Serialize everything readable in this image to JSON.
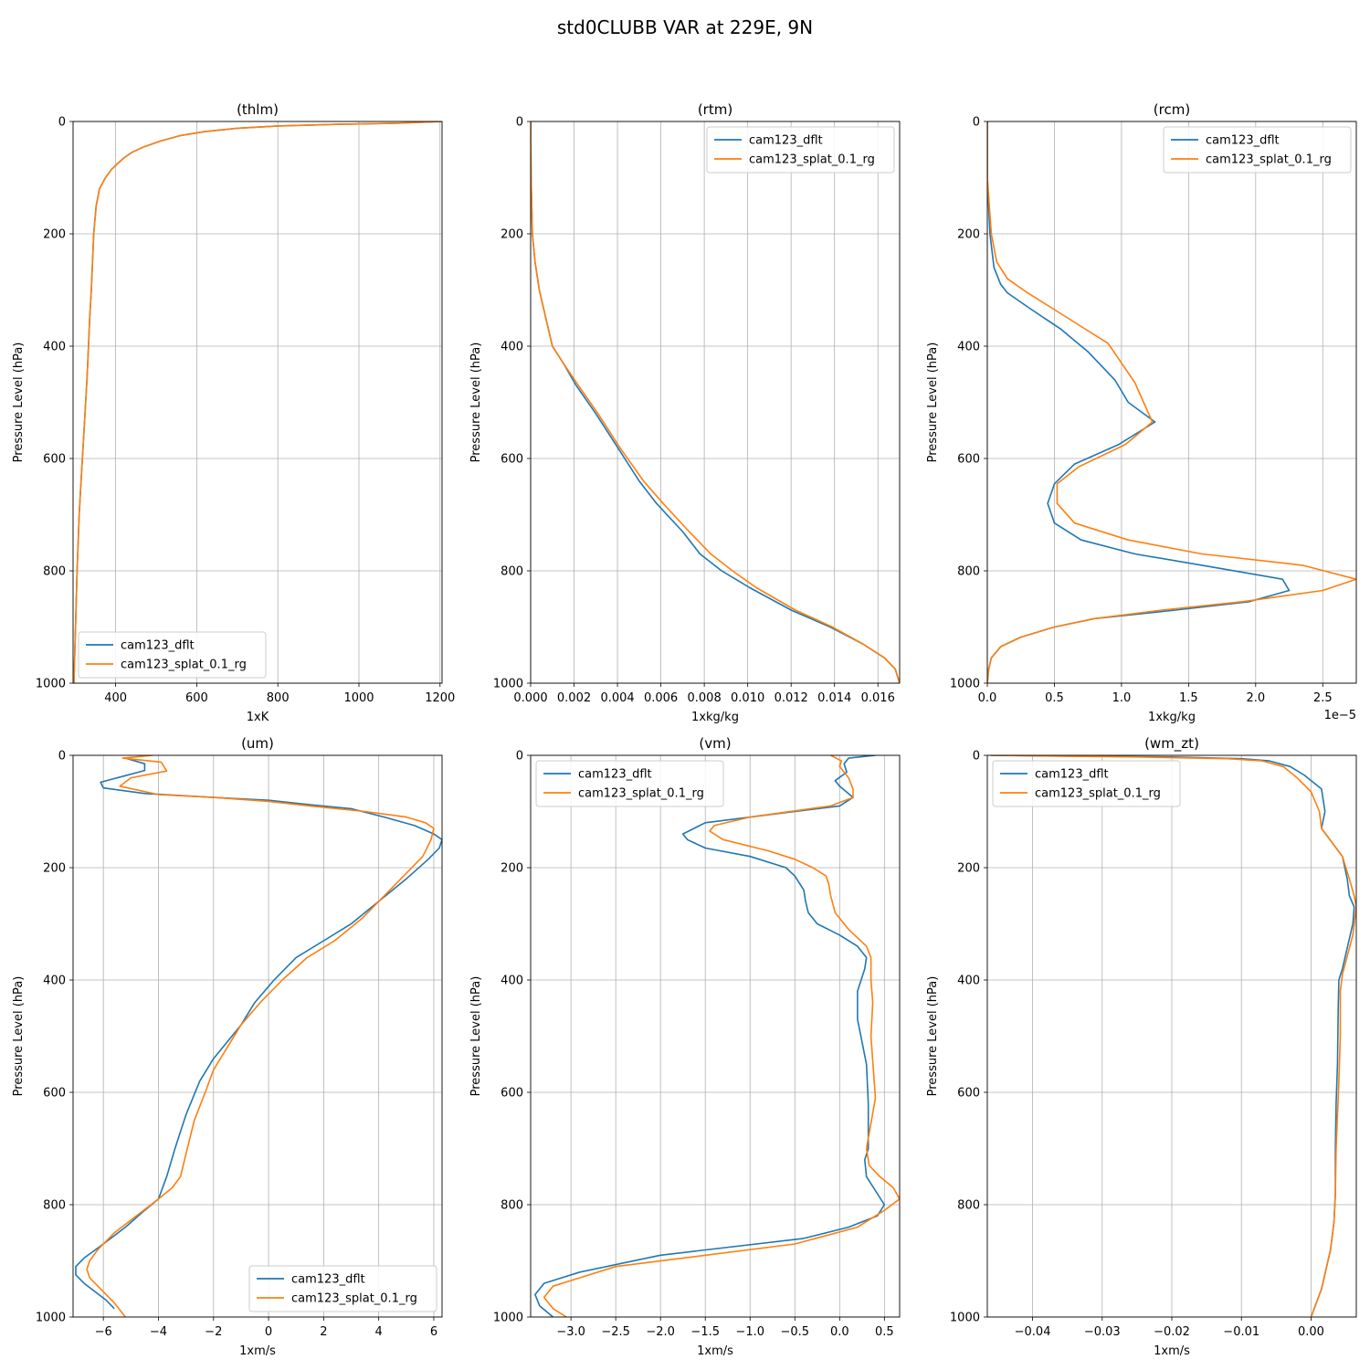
{
  "suptitle": "std0CLUBB VAR at 229E, 9N",
  "colors": {
    "cam123_dflt": "#1f77b4",
    "cam123_splat_0.1_rg": "#ff7f0e",
    "grid": "#b0b0b0"
  },
  "chart_data": [
    {
      "type": "line",
      "title": "(thlm)",
      "xlabel": "1xK",
      "ylabel": "Pressure Level (hPa)",
      "xlim": [
        295,
        1205
      ],
      "ylim": [
        1000,
        0
      ],
      "xticks": [
        400,
        600,
        800,
        1000,
        1200
      ],
      "xtick_labels": [
        "400",
        "600",
        "800",
        "1000",
        "1200"
      ],
      "yticks": [
        0,
        200,
        400,
        600,
        800,
        1000
      ],
      "ytick_labels": [
        "0",
        "200",
        "400",
        "600",
        "800",
        "1000"
      ],
      "offset_label": "",
      "grid": true,
      "legend": "lower left",
      "series": [
        {
          "name": "cam123_dflt",
          "color": "#1f77b4",
          "x": [
            1205,
            1100,
            950,
            800,
            700,
            620,
            560,
            510,
            470,
            440,
            420,
            405,
            390,
            375,
            360,
            352,
            346,
            343,
            340,
            336,
            333,
            330,
            326,
            322,
            318,
            314,
            310,
            305,
            301,
            297
          ],
          "y": [
            0,
            3,
            5,
            8,
            12,
            18,
            25,
            35,
            45,
            55,
            65,
            75,
            85,
            100,
            120,
            150,
            200,
            250,
            300,
            350,
            400,
            450,
            500,
            550,
            600,
            650,
            700,
            800,
            900,
            1000
          ]
        },
        {
          "name": "cam123_splat_0.1_rg",
          "color": "#ff7f0e",
          "x": [
            1205,
            1100,
            950,
            800,
            700,
            620,
            560,
            510,
            470,
            440,
            420,
            405,
            390,
            375,
            360,
            352,
            346,
            343,
            340,
            336,
            333,
            330,
            326,
            322,
            318,
            314,
            310,
            305,
            301,
            297
          ],
          "y": [
            0,
            3,
            5,
            8,
            12,
            18,
            25,
            35,
            45,
            55,
            65,
            75,
            85,
            100,
            120,
            150,
            200,
            250,
            300,
            350,
            400,
            450,
            500,
            550,
            600,
            650,
            700,
            800,
            900,
            1000
          ]
        }
      ]
    },
    {
      "type": "line",
      "title": "(rtm)",
      "xlabel": "1xkg/kg",
      "ylabel": "Pressure Level (hPa)",
      "xlim": [
        0.0,
        0.017
      ],
      "ylim": [
        1000,
        0
      ],
      "xticks": [
        0.0,
        0.002,
        0.004,
        0.006,
        0.008,
        0.01,
        0.012,
        0.014,
        0.016
      ],
      "xtick_labels": [
        "0.000",
        "0.002",
        "0.004",
        "0.006",
        "0.008",
        "0.010",
        "0.012",
        "0.014",
        "0.016"
      ],
      "yticks": [
        0,
        200,
        400,
        600,
        800,
        1000
      ],
      "ytick_labels": [
        "0",
        "200",
        "400",
        "600",
        "800",
        "1000"
      ],
      "offset_label": "",
      "grid": true,
      "legend": "upper right",
      "series": [
        {
          "name": "cam123_dflt",
          "color": "#1f77b4",
          "x": [
            0.0,
            2e-05,
            8e-05,
            0.0002,
            0.0004,
            0.0007,
            0.001,
            0.0015,
            0.0021,
            0.003,
            0.004,
            0.005,
            0.0058,
            0.007,
            0.0078,
            0.0088,
            0.0101,
            0.012,
            0.0138,
            0.0153,
            0.0163,
            0.0168,
            0.017
          ],
          "y": [
            0,
            100,
            200,
            250,
            300,
            350,
            400,
            430,
            470,
            520,
            580,
            640,
            680,
            730,
            770,
            800,
            830,
            870,
            900,
            930,
            955,
            975,
            1000
          ]
        },
        {
          "name": "cam123_splat_0.1_rg",
          "color": "#ff7f0e",
          "x": [
            0.0,
            2e-05,
            8e-05,
            0.0002,
            0.0004,
            0.0007,
            0.001,
            0.0015,
            0.0022,
            0.0031,
            0.0041,
            0.0052,
            0.0061,
            0.0073,
            0.0083,
            0.0093,
            0.0104,
            0.0122,
            0.0139,
            0.0153,
            0.0163,
            0.0168,
            0.017
          ],
          "y": [
            0,
            100,
            200,
            250,
            300,
            350,
            400,
            430,
            470,
            520,
            580,
            640,
            680,
            730,
            770,
            800,
            830,
            870,
            900,
            930,
            955,
            975,
            1000
          ]
        }
      ]
    },
    {
      "type": "line",
      "title": "(rcm)",
      "xlabel": "1xkg/kg",
      "ylabel": "Pressure Level (hPa)",
      "xlim": [
        0.0,
        2.75
      ],
      "ylim": [
        1000,
        0
      ],
      "xticks": [
        0.0,
        0.5,
        1.0,
        1.5,
        2.0,
        2.5
      ],
      "xtick_labels": [
        "0.0",
        "0.5",
        "1.0",
        "1.5",
        "2.0",
        "2.5"
      ],
      "yticks": [
        0,
        200,
        400,
        600,
        800,
        1000
      ],
      "ytick_labels": [
        "0",
        "200",
        "400",
        "600",
        "800",
        "1000"
      ],
      "offset_label": "1e−5",
      "grid": true,
      "legend": "upper right",
      "series": [
        {
          "name": "cam123_dflt",
          "color": "#1f77b4",
          "x": [
            0.0,
            0.0,
            0.02,
            0.05,
            0.1,
            0.15,
            0.3,
            0.55,
            0.75,
            0.95,
            1.05,
            1.25,
            0.98,
            0.65,
            0.5,
            0.45,
            0.5,
            0.7,
            1.1,
            1.6,
            2.2,
            2.25,
            1.95,
            1.4,
            0.8,
            0.5,
            0.25,
            0.1,
            0.03,
            0.01,
            0.0
          ],
          "y": [
            0,
            100,
            200,
            260,
            290,
            305,
            330,
            370,
            410,
            460,
            500,
            535,
            575,
            610,
            645,
            680,
            715,
            745,
            770,
            790,
            815,
            835,
            855,
            870,
            885,
            900,
            918,
            935,
            955,
            975,
            1000
          ]
        },
        {
          "name": "cam123_splat_0.1_rg",
          "color": "#ff7f0e",
          "x": [
            0.0,
            0.0,
            0.03,
            0.07,
            0.15,
            0.3,
            0.5,
            0.7,
            0.9,
            1.0,
            1.1,
            1.23,
            1.03,
            0.68,
            0.52,
            0.52,
            0.65,
            1.05,
            1.6,
            2.35,
            2.75,
            2.5,
            1.9,
            1.3,
            0.8,
            0.5,
            0.25,
            0.1,
            0.03,
            0.01,
            0.0
          ],
          "y": [
            0,
            100,
            200,
            250,
            280,
            305,
            335,
            365,
            395,
            430,
            465,
            535,
            575,
            615,
            645,
            680,
            715,
            745,
            770,
            790,
            815,
            835,
            855,
            870,
            885,
            900,
            918,
            935,
            955,
            975,
            1000
          ]
        }
      ]
    },
    {
      "type": "line",
      "title": "(um)",
      "xlabel": "1xm/s",
      "ylabel": "Pressure Level (hPa)",
      "xlim": [
        -7.1,
        6.3
      ],
      "ylim": [
        1000,
        0
      ],
      "xticks": [
        -6,
        -4,
        -2,
        0,
        2,
        4,
        6
      ],
      "xtick_labels": [
        "−6",
        "−4",
        "−2",
        "0",
        "2",
        "4",
        "6"
      ],
      "yticks": [
        0,
        200,
        400,
        600,
        800,
        1000
      ],
      "ytick_labels": [
        "0",
        "200",
        "400",
        "600",
        "800",
        "1000"
      ],
      "offset_label": "",
      "grid": true,
      "legend": "lower right",
      "series": [
        {
          "name": "cam123_dflt",
          "color": "#1f77b4",
          "x": [
            -5.2,
            -4.5,
            -4.5,
            -6.1,
            -6.0,
            -4.5,
            -2.0,
            0.0,
            1.5,
            3.0,
            4.2,
            5.3,
            6.0,
            6.3,
            6.2,
            5.8,
            5.0,
            4.0,
            3.0,
            2.0,
            1.0,
            0.2,
            -0.5,
            -1.0,
            -1.5,
            -2.0,
            -2.5,
            -3.0,
            -3.4,
            -3.7,
            -3.85,
            -4.0,
            -4.5,
            -5.2,
            -6.0,
            -6.7,
            -7.0,
            -7.0,
            -6.7,
            -6.3,
            -5.9,
            -5.6
          ],
          "y": [
            5,
            15,
            27,
            48,
            58,
            68,
            75,
            80,
            88,
            95,
            110,
            125,
            140,
            150,
            165,
            185,
            220,
            260,
            300,
            330,
            360,
            400,
            440,
            480,
            510,
            540,
            580,
            640,
            700,
            750,
            770,
            790,
            810,
            840,
            870,
            895,
            910,
            925,
            940,
            955,
            970,
            985
          ]
        },
        {
          "name": "cam123_splat_0.1_rg",
          "color": "#ff7f0e",
          "x": [
            -4.2,
            -5.3,
            -3.9,
            -3.7,
            -5.0,
            -5.4,
            -4.0,
            -2.0,
            0.0,
            1.5,
            3.5,
            5.0,
            5.7,
            6.0,
            5.9,
            5.6,
            4.8,
            4.2,
            3.4,
            2.4,
            1.4,
            0.5,
            -0.3,
            -1.0,
            -1.5,
            -2.0,
            -2.3,
            -2.7,
            -3.0,
            -3.2,
            -3.5,
            -4.0,
            -4.8,
            -5.6,
            -6.2,
            -6.5,
            -6.6,
            -6.5,
            -6.0,
            -5.6,
            -5.2
          ],
          "y": [
            0,
            5,
            12,
            28,
            40,
            55,
            70,
            75,
            82,
            90,
            100,
            110,
            120,
            130,
            150,
            180,
            220,
            250,
            290,
            330,
            360,
            400,
            440,
            480,
            520,
            560,
            600,
            650,
            710,
            750,
            770,
            790,
            820,
            850,
            880,
            900,
            915,
            930,
            955,
            975,
            1000
          ]
        }
      ]
    },
    {
      "type": "line",
      "title": "(vm)",
      "xlabel": "1xm/s",
      "ylabel": "Pressure Level (hPa)",
      "xlim": [
        -3.45,
        0.67
      ],
      "ylim": [
        1000,
        0
      ],
      "xticks": [
        -3.0,
        -2.5,
        -2.0,
        -1.5,
        -1.0,
        -0.5,
        0.0,
        0.5
      ],
      "xtick_labels": [
        "−3.0",
        "−2.5",
        "−2.0",
        "−1.5",
        "−1.0",
        "−0.5",
        "0.0",
        "0.5"
      ],
      "yticks": [
        0,
        200,
        400,
        600,
        800,
        1000
      ],
      "ytick_labels": [
        "0",
        "200",
        "400",
        "600",
        "800",
        "1000"
      ],
      "offset_label": "",
      "grid": true,
      "legend": "upper left",
      "series": [
        {
          "name": "cam123_dflt",
          "color": "#1f77b4",
          "x": [
            0.4,
            0.1,
            0.05,
            0.08,
            -0.05,
            0.0,
            0.15,
            0.0,
            -0.5,
            -1.5,
            -1.75,
            -1.7,
            -1.5,
            -1.0,
            -0.6,
            -0.5,
            -0.4,
            -0.38,
            -0.35,
            -0.25,
            0.0,
            0.2,
            0.3,
            0.28,
            0.2,
            0.2,
            0.3,
            0.32,
            0.32,
            0.28,
            0.3,
            0.5,
            0.42,
            0.1,
            -0.4,
            -2.0,
            -2.9,
            -3.3,
            -3.4,
            -3.35,
            -3.2
          ],
          "y": [
            0,
            5,
            15,
            30,
            45,
            55,
            75,
            90,
            100,
            120,
            140,
            150,
            165,
            180,
            200,
            215,
            240,
            260,
            280,
            300,
            320,
            340,
            360,
            380,
            420,
            470,
            550,
            620,
            700,
            720,
            750,
            800,
            820,
            840,
            860,
            890,
            920,
            940,
            960,
            980,
            1000
          ]
        },
        {
          "name": "cam123_splat_0.1_rg",
          "color": "#ff7f0e",
          "x": [
            -0.1,
            0.02,
            0.0,
            0.1,
            0.15,
            0.15,
            -0.1,
            -1.0,
            -1.4,
            -1.45,
            -1.3,
            -0.8,
            -0.5,
            -0.3,
            -0.15,
            -0.12,
            -0.1,
            -0.05,
            0.1,
            0.3,
            0.35,
            0.35,
            0.37,
            0.35,
            0.4,
            0.3,
            0.33,
            0.45,
            0.6,
            0.67,
            0.5,
            0.2,
            -0.5,
            -2.5,
            -3.2,
            -3.3,
            -3.2,
            -3.05
          ],
          "y": [
            0,
            10,
            20,
            40,
            60,
            75,
            90,
            110,
            125,
            135,
            150,
            170,
            185,
            200,
            215,
            230,
            250,
            280,
            310,
            340,
            360,
            400,
            440,
            500,
            610,
            700,
            730,
            750,
            770,
            790,
            810,
            840,
            870,
            910,
            945,
            965,
            985,
            1000
          ]
        }
      ]
    },
    {
      "type": "line",
      "title": "(wm_zt)",
      "xlabel": "1xm/s",
      "ylabel": "Pressure Level (hPa)",
      "xlim": [
        -0.0465,
        0.0065
      ],
      "ylim": [
        1000,
        0
      ],
      "xticks": [
        -0.04,
        -0.03,
        -0.02,
        -0.01,
        0.0
      ],
      "xtick_labels": [
        "−0.04",
        "−0.03",
        "−0.02",
        "−0.01",
        "0.00"
      ],
      "yticks": [
        0,
        200,
        400,
        600,
        800,
        1000
      ],
      "ytick_labels": [
        "0",
        "200",
        "400",
        "600",
        "800",
        "1000"
      ],
      "offset_label": "",
      "grid": true,
      "legend": "upper left",
      "series": [
        {
          "name": "cam123_dflt",
          "color": "#1f77b4",
          "x": [
            -0.046,
            -0.02,
            -0.01,
            -0.006,
            -0.003,
            -0.001,
            0.0015,
            0.002,
            0.0015,
            0.0045,
            0.0052,
            0.0055,
            0.0062,
            0.006,
            0.0045,
            0.004,
            0.0039,
            0.0038,
            0.0036,
            0.0035,
            0.0035,
            0.0033,
            0.0028,
            0.0015,
            0.0
          ],
          "y": [
            0,
            3,
            6,
            10,
            20,
            35,
            60,
            100,
            130,
            180,
            220,
            250,
            270,
            300,
            380,
            400,
            450,
            550,
            620,
            700,
            780,
            830,
            880,
            950,
            1000
          ]
        },
        {
          "name": "cam123_splat_0.1_rg",
          "color": "#ff7f0e",
          "x": [
            -0.046,
            -0.025,
            -0.012,
            -0.007,
            -0.004,
            -0.002,
            0.0,
            0.0012,
            0.0015,
            0.0045,
            0.0055,
            0.0062,
            0.0065,
            0.006,
            0.0045,
            0.0042,
            0.0042,
            0.004,
            0.0038,
            0.0036,
            0.0035,
            0.0033,
            0.0028,
            0.0015,
            0.0
          ],
          "y": [
            0,
            3,
            6,
            10,
            20,
            40,
            65,
            100,
            130,
            180,
            220,
            250,
            270,
            320,
            390,
            420,
            500,
            580,
            640,
            700,
            780,
            830,
            880,
            950,
            1000
          ]
        }
      ]
    }
  ]
}
